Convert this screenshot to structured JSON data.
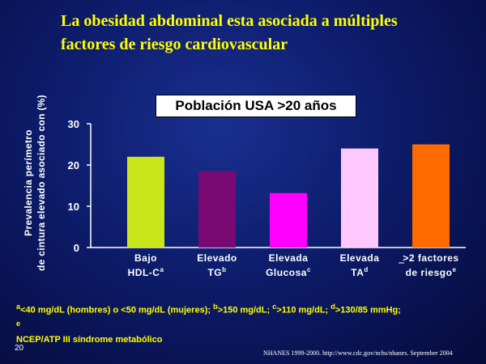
{
  "slide": {
    "title_line1": "La obesidad abdominal esta asociada a múltiples",
    "title_line2": "factores de riesgo cardiovascular",
    "page_number": "20",
    "source": "NHANES 1999-2000. http://www.cdc.gov/nchs/nhanes. September 2004",
    "footnote_line1": "<40 mg/dL (hombres) o <50 mg/dL (mujeres); >150 mg/dL; >110 mg/dL; >130/85 mmHg;",
    "footnote_line2": "NCEP/ATP III síndrome metabólico",
    "footnote_line1_full": "a<40 mg/dL (hombres) o <50 mg/dL (mujeres); b>150 mg/dL; c>110 mg/dL; d>130/85 mmHg;",
    "footnote_line2_full": "eNCEP/ATP III síndrome metabólico"
  },
  "chart_data": {
    "type": "bar",
    "legend": "Población USA >20 años",
    "ylabel_line1": "Prevalencia perímetro",
    "ylabel_line2": "de cintura elevado asociado con (%)",
    "ylim": [
      0,
      30
    ],
    "yticks": [
      "0",
      "10",
      "20",
      "30"
    ],
    "categories": [
      {
        "line1": "Bajo",
        "line2": "HDL-C",
        "sup": "a"
      },
      {
        "line1": "Elevado",
        "line2": "TG",
        "sup": "b"
      },
      {
        "line1": "Elevada",
        "line2": "Glucosa",
        "sup": "c"
      },
      {
        "line1": "Elevada",
        "line2": "TA",
        "sup": "d"
      },
      {
        "line1": ">2 factores",
        "line2": "de riesgo",
        "sup": "e"
      }
    ],
    "values": [
      22,
      18.5,
      13.2,
      24,
      25
    ],
    "colors": [
      "#c8e619",
      "#7a0a73",
      "#ff00ff",
      "#ffc8ff",
      "#ff6a00"
    ],
    "grid": false
  },
  "colors": {
    "title": "#ffff00",
    "footnote": "#ffff00",
    "text": "#ffffff",
    "axis": "#ffffff"
  }
}
